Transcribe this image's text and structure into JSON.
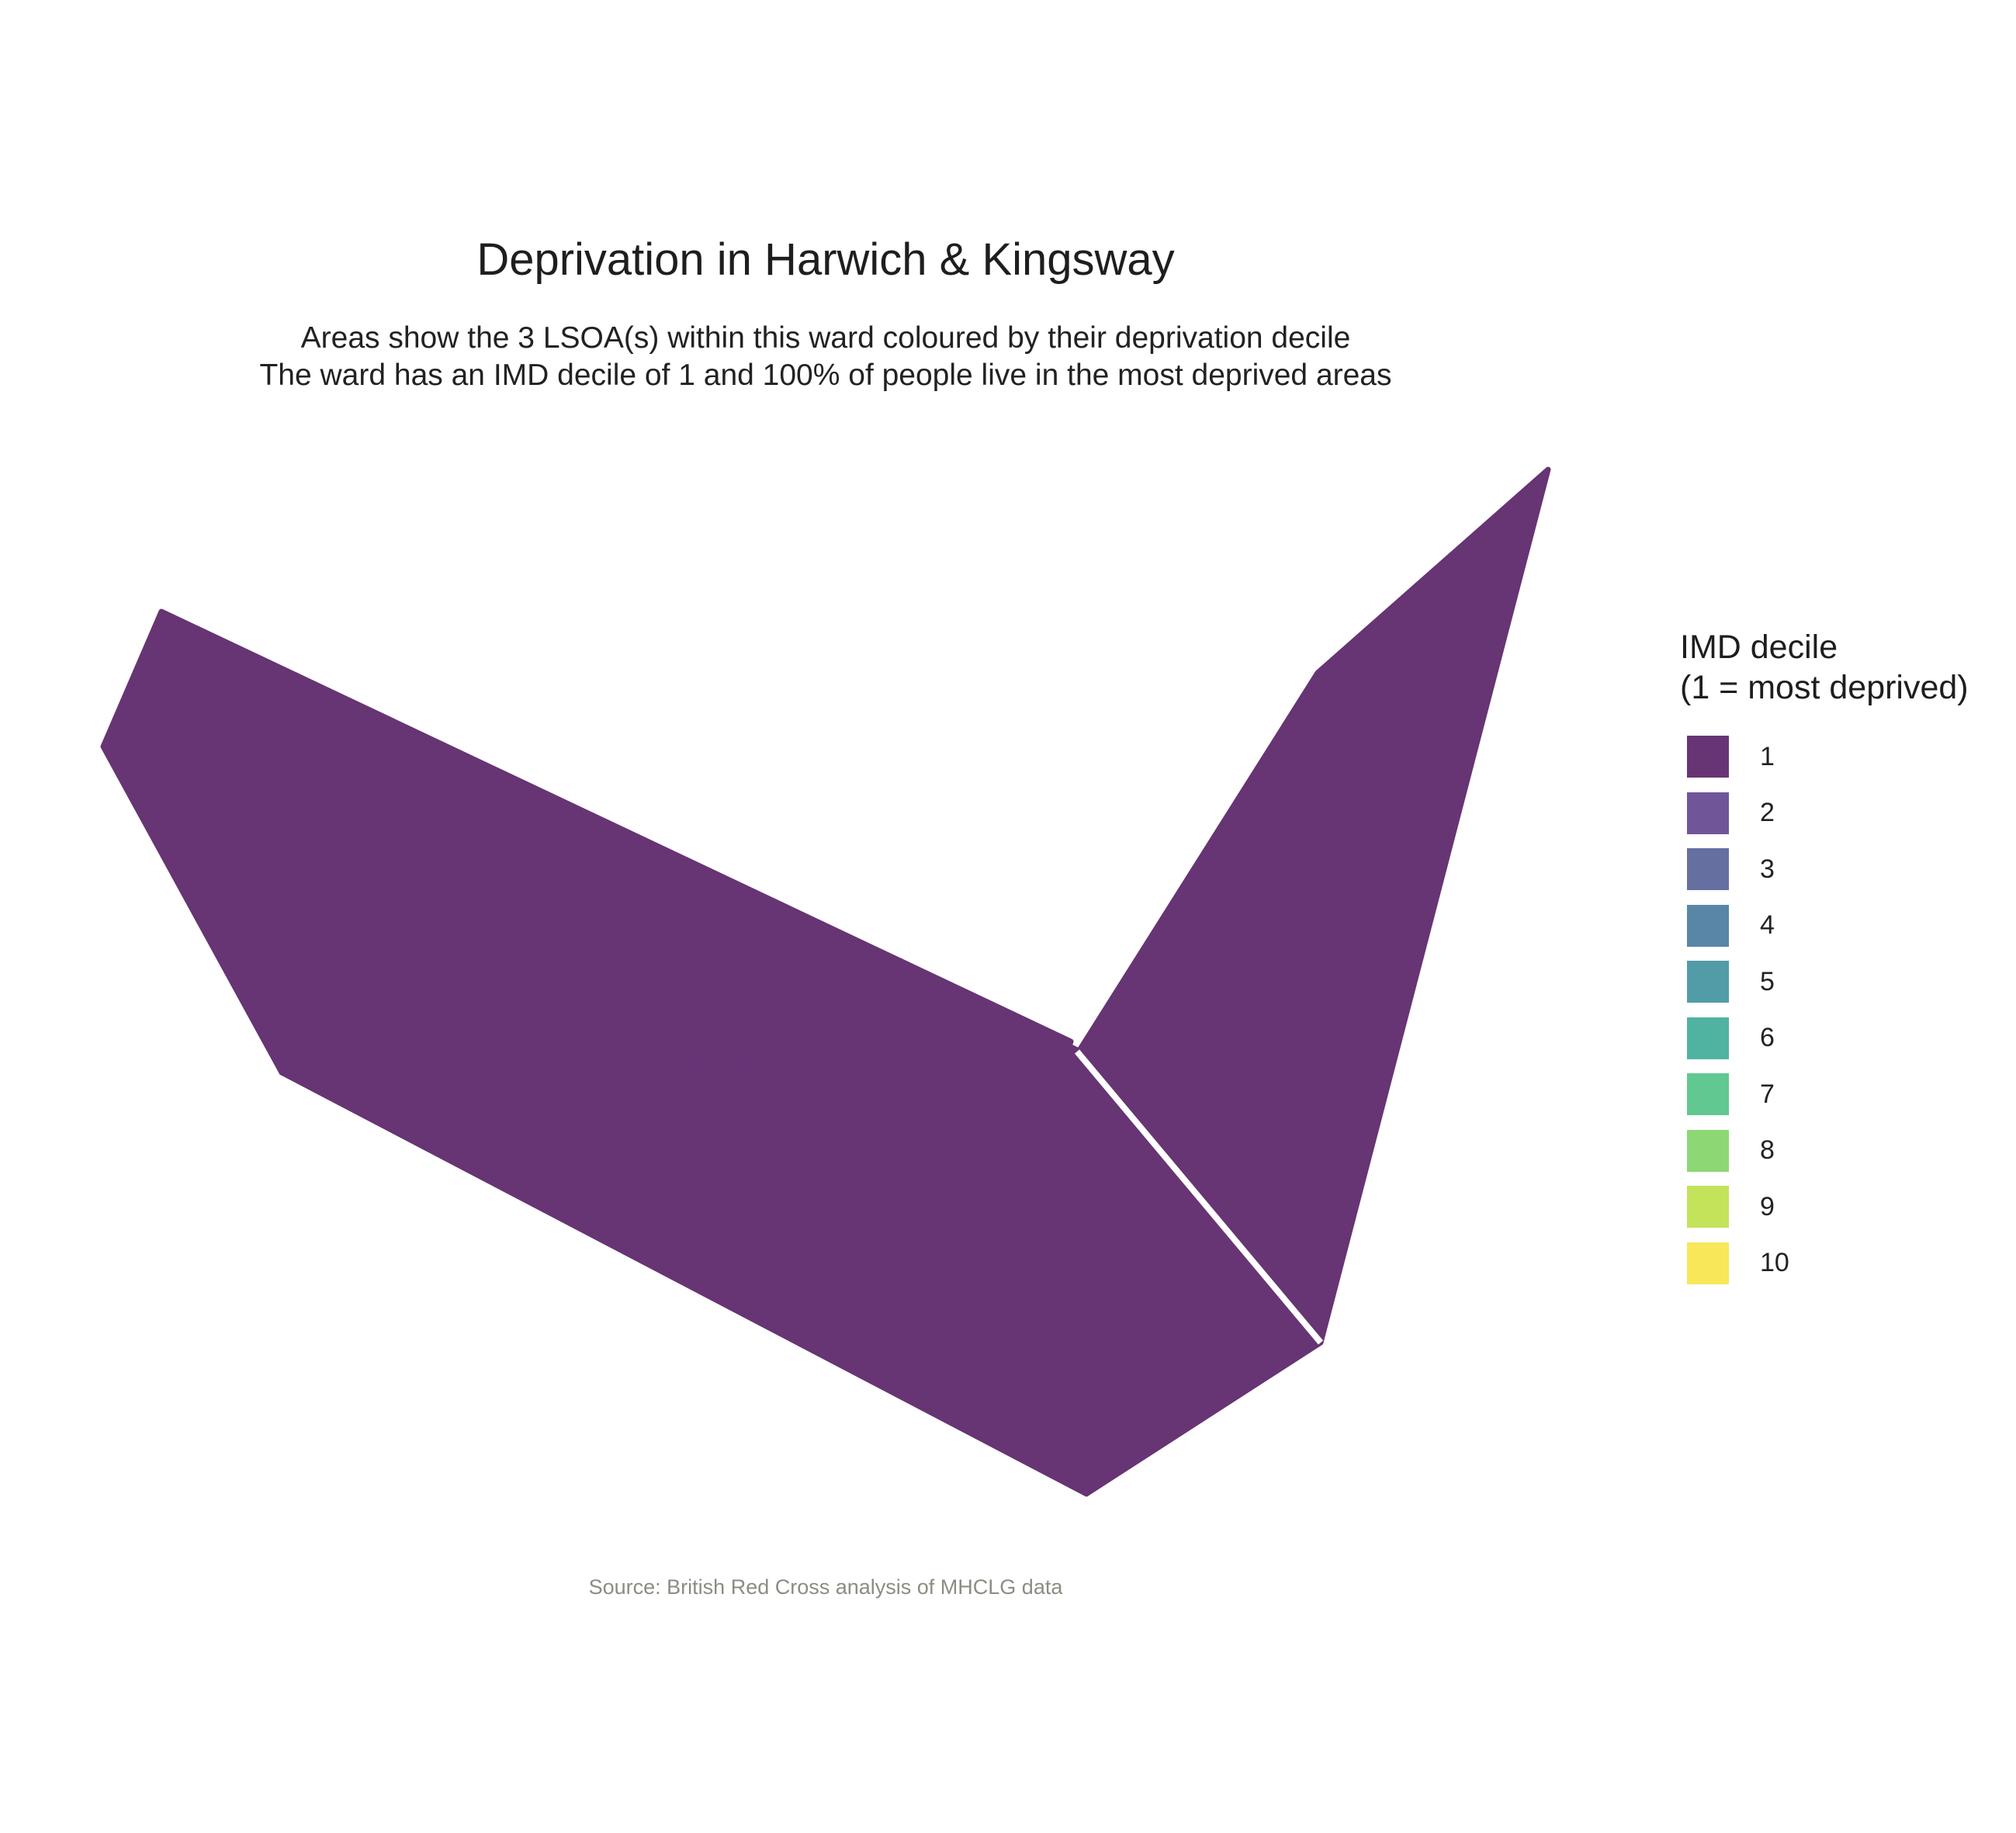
{
  "title": "Deprivation in Harwich & Kingsway",
  "subtitle_line1": "Areas show the 3 LSOA(s) within this ward coloured by their deprivation decile",
  "subtitle_line2": "The ward has an IMD decile of 1 and 100% of people live in the most deprived areas",
  "caption": "Source: British Red Cross analysis of MHCLG data",
  "legend": {
    "title_line1": "IMD decile",
    "title_line2": "(1 = most deprived)",
    "items": [
      {
        "label": "1",
        "color": "#673474"
      },
      {
        "label": "2",
        "color": "#705599"
      },
      {
        "label": "3",
        "color": "#6570a0"
      },
      {
        "label": "4",
        "color": "#5986a6"
      },
      {
        "label": "5",
        "color": "#529ca7"
      },
      {
        "label": "6",
        "color": "#50b3a1"
      },
      {
        "label": "7",
        "color": "#61c891"
      },
      {
        "label": "8",
        "color": "#8dd774"
      },
      {
        "label": "9",
        "color": "#c2e35a"
      },
      {
        "label": "10",
        "color": "#f7e759"
      }
    ]
  },
  "map": {
    "areas": [
      {
        "name": "lsoa-west",
        "imd_decile": 1,
        "fill": "#673474"
      },
      {
        "name": "lsoa-south",
        "imd_decile": 1,
        "fill": "#673474"
      },
      {
        "name": "lsoa-northeast",
        "imd_decile": 1,
        "fill": "#673474"
      }
    ],
    "boundary_color": "#ffffff"
  }
}
